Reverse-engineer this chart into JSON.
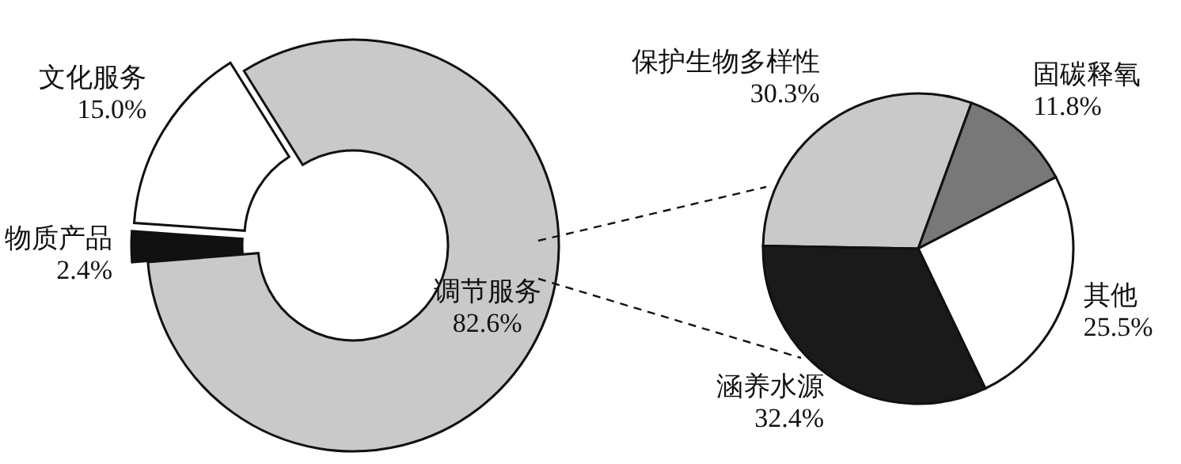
{
  "chart_data": [
    {
      "type": "donut",
      "categories": [
        "文化服务",
        "物质产品",
        "调节服务"
      ],
      "values": [
        15.0,
        2.4,
        82.6
      ],
      "colors": [
        "#ffffff",
        "#111111",
        "#c9c9c9"
      ],
      "value_labels": [
        "15.0%",
        "2.4%",
        "82.6%"
      ]
    },
    {
      "type": "pie",
      "categories": [
        "保护生物多样性",
        "固碳释氧",
        "其他",
        "涵养水源"
      ],
      "values": [
        30.3,
        11.8,
        25.5,
        32.4
      ],
      "colors": [
        "#c9c9c9",
        "#787878",
        "#ffffff",
        "#1a1a1a"
      ],
      "value_labels": [
        "30.3%",
        "11.8%",
        "25.5%",
        "32.4%"
      ]
    }
  ]
}
